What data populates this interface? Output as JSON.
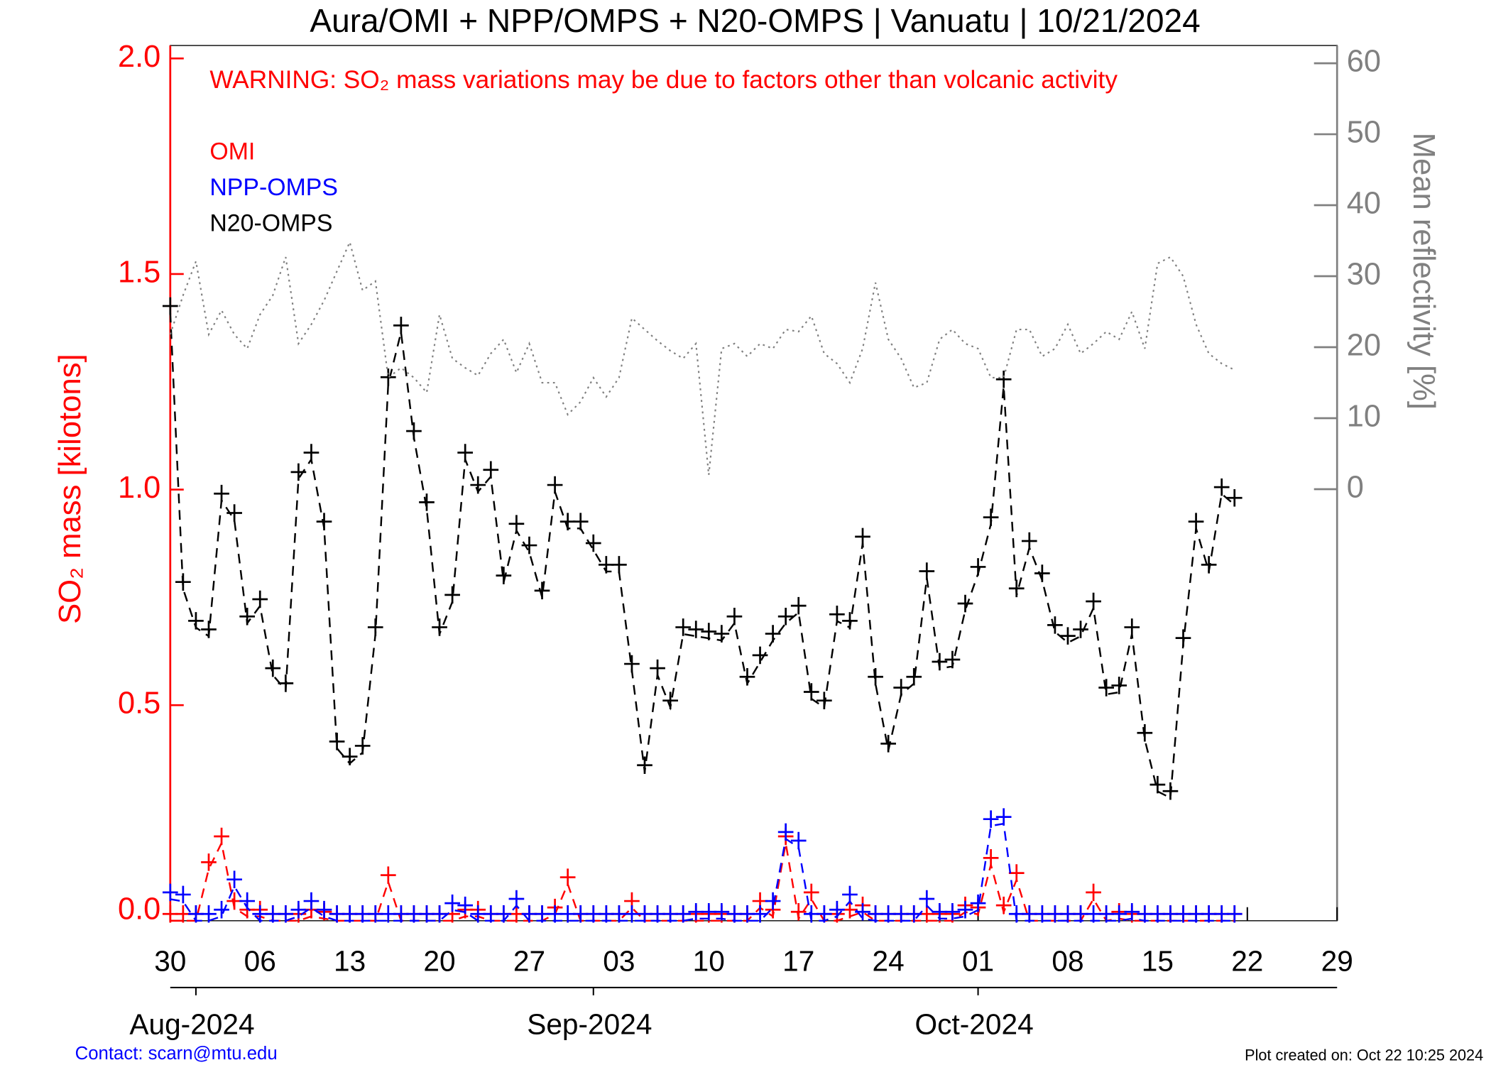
{
  "chart_data": {
    "type": "line",
    "title": "Aura/OMI + NPP/OMPS + N20-OMPS | Vanuatu | 10/21/2024",
    "annotation": "WARNING: SO₂ mass variations may be due to factors other than volcanic activity",
    "ylabel": "SO₂ mass [kilotons]",
    "y2label": "Mean reflectivity [%]",
    "contact": "Contact: scarn@mtu.edu",
    "footer": "Plot created on: Oct 22 10:25 2024",
    "x": [
      "2024-07-30",
      "2024-07-31",
      "2024-08-01",
      "2024-08-02",
      "2024-08-03",
      "2024-08-04",
      "2024-08-05",
      "2024-08-06",
      "2024-08-07",
      "2024-08-08",
      "2024-08-09",
      "2024-08-10",
      "2024-08-11",
      "2024-08-12",
      "2024-08-13",
      "2024-08-14",
      "2024-08-15",
      "2024-08-16",
      "2024-08-17",
      "2024-08-18",
      "2024-08-19",
      "2024-08-20",
      "2024-08-21",
      "2024-08-22",
      "2024-08-23",
      "2024-08-24",
      "2024-08-25",
      "2024-08-26",
      "2024-08-27",
      "2024-08-28",
      "2024-08-29",
      "2024-08-30",
      "2024-08-31",
      "2024-09-01",
      "2024-09-02",
      "2024-09-03",
      "2024-09-04",
      "2024-09-05",
      "2024-09-06",
      "2024-09-07",
      "2024-09-08",
      "2024-09-09",
      "2024-09-10",
      "2024-09-11",
      "2024-09-12",
      "2024-09-13",
      "2024-09-14",
      "2024-09-15",
      "2024-09-16",
      "2024-09-17",
      "2024-09-18",
      "2024-09-19",
      "2024-09-20",
      "2024-09-21",
      "2024-09-22",
      "2024-09-23",
      "2024-09-24",
      "2024-09-25",
      "2024-09-26",
      "2024-09-27",
      "2024-09-28",
      "2024-09-29",
      "2024-09-30",
      "2024-10-01",
      "2024-10-02",
      "2024-10-03",
      "2024-10-04",
      "2024-10-05",
      "2024-10-06",
      "2024-10-07",
      "2024-10-08",
      "2024-10-09",
      "2024-10-10",
      "2024-10-11",
      "2024-10-12",
      "2024-10-13",
      "2024-10-14",
      "2024-10-15",
      "2024-10-16",
      "2024-10-17",
      "2024-10-18",
      "2024-10-19",
      "2024-10-20",
      "2024-10-21"
    ],
    "series": [
      {
        "name": "OMI",
        "color": "#ff0000",
        "values": [
          0,
          0,
          0,
          0.12,
          0.18,
          0.03,
          0.01,
          0.01,
          0,
          0,
          0,
          0.01,
          0.005,
          0,
          0,
          0,
          0,
          0.09,
          0,
          0,
          0,
          0,
          0,
          0.01,
          0.01,
          0,
          0,
          0,
          0,
          0,
          0.015,
          0.085,
          0,
          0,
          0,
          0,
          0.03,
          0,
          0,
          0,
          0,
          0,
          0,
          0,
          0,
          0,
          0.03,
          0.01,
          0.18,
          0.005,
          0.05,
          0,
          0,
          0.01,
          0.02,
          0,
          0,
          0,
          0,
          0,
          0,
          0,
          0.02,
          0.015,
          0.13,
          0.02,
          0.095,
          0,
          0,
          0,
          0,
          0,
          0.05,
          0,
          0.005,
          0,
          0,
          0,
          0,
          0,
          0,
          0,
          0,
          0
        ]
      },
      {
        "name": "NPP-OMPS",
        "color": "#0000ff",
        "values": [
          0.05,
          0.045,
          0,
          0,
          0.01,
          0.08,
          0.03,
          0,
          0,
          0,
          0.01,
          0.03,
          0.01,
          0,
          0,
          0,
          0,
          0,
          0,
          0,
          0,
          0,
          0.025,
          0.02,
          0,
          0,
          0,
          0.035,
          0,
          0,
          0,
          0,
          0,
          0,
          0,
          0,
          0,
          0,
          0,
          0,
          0,
          0.005,
          0.005,
          0.005,
          0,
          0,
          0,
          0.03,
          0.19,
          0.17,
          0,
          0,
          0.01,
          0.045,
          0.005,
          0,
          0,
          0,
          0,
          0.035,
          0.005,
          0.005,
          0.01,
          0.025,
          0.22,
          0.225,
          0,
          0,
          0,
          0,
          0,
          0,
          0,
          0,
          0,
          0.005,
          0,
          0,
          0,
          0,
          0,
          0,
          0,
          0
        ]
      },
      {
        "name": "N20-OMPS",
        "color": "#000000",
        "values": [
          1.41,
          0.77,
          0.68,
          0.66,
          0.975,
          0.93,
          0.69,
          0.73,
          0.57,
          0.535,
          1.025,
          1.07,
          0.91,
          0.4,
          0.365,
          0.39,
          0.665,
          1.245,
          1.365,
          1.12,
          0.955,
          0.665,
          0.74,
          1.07,
          0.995,
          1.03,
          0.785,
          0.905,
          0.855,
          0.75,
          0.995,
          0.91,
          0.91,
          0.86,
          0.81,
          0.81,
          0.58,
          0.345,
          0.57,
          0.495,
          0.665,
          0.66,
          0.655,
          0.65,
          0.69,
          0.55,
          0.6,
          0.65,
          0.69,
          0.715,
          0.515,
          0.495,
          0.695,
          0.68,
          0.875,
          0.55,
          0.395,
          0.525,
          0.55,
          0.795,
          0.585,
          0.59,
          0.72,
          0.805,
          0.92,
          1.24,
          0.755,
          0.865,
          0.79,
          0.67,
          0.645,
          0.66,
          0.725,
          0.525,
          0.53,
          0.665,
          0.42,
          0.3,
          0.285,
          0.64,
          0.91,
          0.81,
          0.99,
          0.965
        ]
      },
      {
        "color": "#808080",
        "axis": "y2",
        "line_style": "dotted",
        "values": [
          21.8,
          27.3,
          32.1,
          21.8,
          25.2,
          21.8,
          19.8,
          24.6,
          27.3,
          32.7,
          20.5,
          23.2,
          26.6,
          30.7,
          34.8,
          28.0,
          29.3,
          15.7,
          17.1,
          15.7,
          13.6,
          24.6,
          18.4,
          17.1,
          16.0,
          19.1,
          21.1,
          16.4,
          20.5,
          15.0,
          15.0,
          10.5,
          12.3,
          15.7,
          13.0,
          15.7,
          24.1,
          22.5,
          20.9,
          19.5,
          18.4,
          20.5,
          2.0,
          19.8,
          20.5,
          18.7,
          20.5,
          19.8,
          22.5,
          22.2,
          24.4,
          19.1,
          17.7,
          15.0,
          19.8,
          29.1,
          21.1,
          18.4,
          14.3,
          15.0,
          21.1,
          22.5,
          20.5,
          19.8,
          15.7,
          15.7,
          22.5,
          22.5,
          18.7,
          19.8,
          23.2,
          19.1,
          20.5,
          22.2,
          21.1,
          25.0,
          19.8,
          31.8,
          32.7,
          30.0,
          23.2,
          19.1,
          17.7,
          16.8
        ]
      }
    ],
    "xlim": [
      "2024-07-30",
      "2024-10-29"
    ],
    "xticks": [
      {
        "value": "2024-07-30",
        "label": "30"
      },
      {
        "value": "2024-08-06",
        "label": "06"
      },
      {
        "value": "2024-08-13",
        "label": "13"
      },
      {
        "value": "2024-08-20",
        "label": "20"
      },
      {
        "value": "2024-08-27",
        "label": "27"
      },
      {
        "value": "2024-09-03",
        "label": "03"
      },
      {
        "value": "2024-09-10",
        "label": "10"
      },
      {
        "value": "2024-09-17",
        "label": "17"
      },
      {
        "value": "2024-09-24",
        "label": "24"
      },
      {
        "value": "2024-10-01",
        "label": "01"
      },
      {
        "value": "2024-10-08",
        "label": "08"
      },
      {
        "value": "2024-10-15",
        "label": "15"
      },
      {
        "value": "2024-10-22",
        "label": "22"
      },
      {
        "value": "2024-10-29",
        "label": "29"
      }
    ],
    "month_ticks": [
      {
        "value": "2024-08-01",
        "label": "Aug-2024"
      },
      {
        "value": "2024-09-01",
        "label": "Sep-2024"
      },
      {
        "value": "2024-10-01",
        "label": "Oct-2024"
      }
    ],
    "ylim": [
      0,
      2.03
    ],
    "yticks": [
      {
        "value": 0,
        "label": "0.0"
      },
      {
        "value": 0.5,
        "label": "0.5"
      },
      {
        "value": 1,
        "label": "1.0"
      },
      {
        "value": 1.5,
        "label": "1.5"
      },
      {
        "value": 2,
        "label": "2.0"
      }
    ],
    "y2lim": [
      -60.8,
      62.5
    ],
    "y2ticks": [
      0,
      10,
      20,
      30,
      40,
      50,
      60
    ]
  }
}
